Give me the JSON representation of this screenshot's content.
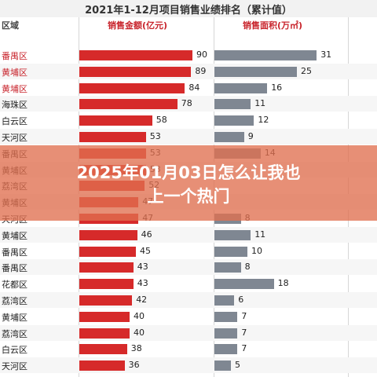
{
  "chart_data": {
    "type": "bar",
    "title": "2021年1-12月项目销售业绩排名（累计值）",
    "region_header": "区域",
    "categories": [
      "番禺区",
      "黄埔区",
      "黄埔区",
      "海珠区",
      "白云区",
      "天河区",
      "番禺区",
      "黄埔区",
      "荔湾区",
      "黄埔区",
      "天河区",
      "黄埔区",
      "番禺区",
      "番禺区",
      "花都区",
      "荔湾区",
      "黄埔区",
      "荔湾区",
      "白云区",
      "天河区"
    ],
    "highlighted_rows": [
      0,
      1,
      2
    ],
    "series": [
      {
        "name": "销售金额(亿元)",
        "color": "#d62a2a",
        "values": [
          90,
          89,
          84,
          78,
          58,
          53,
          53,
          53,
          52,
          47,
          47,
          46,
          45,
          43,
          43,
          42,
          40,
          40,
          38,
          36
        ]
      },
      {
        "name": "销售面积(万㎡)",
        "color": "#7f8792",
        "values": [
          31,
          25,
          16,
          11,
          12,
          9,
          14,
          null,
          null,
          null,
          8,
          11,
          10,
          8,
          18,
          6,
          7,
          7,
          7,
          5
        ]
      }
    ],
    "grid": false,
    "legend": "none"
  },
  "overlay": {
    "line1": "2025年01月03日怎么让我也",
    "line2": "上一个热门"
  }
}
